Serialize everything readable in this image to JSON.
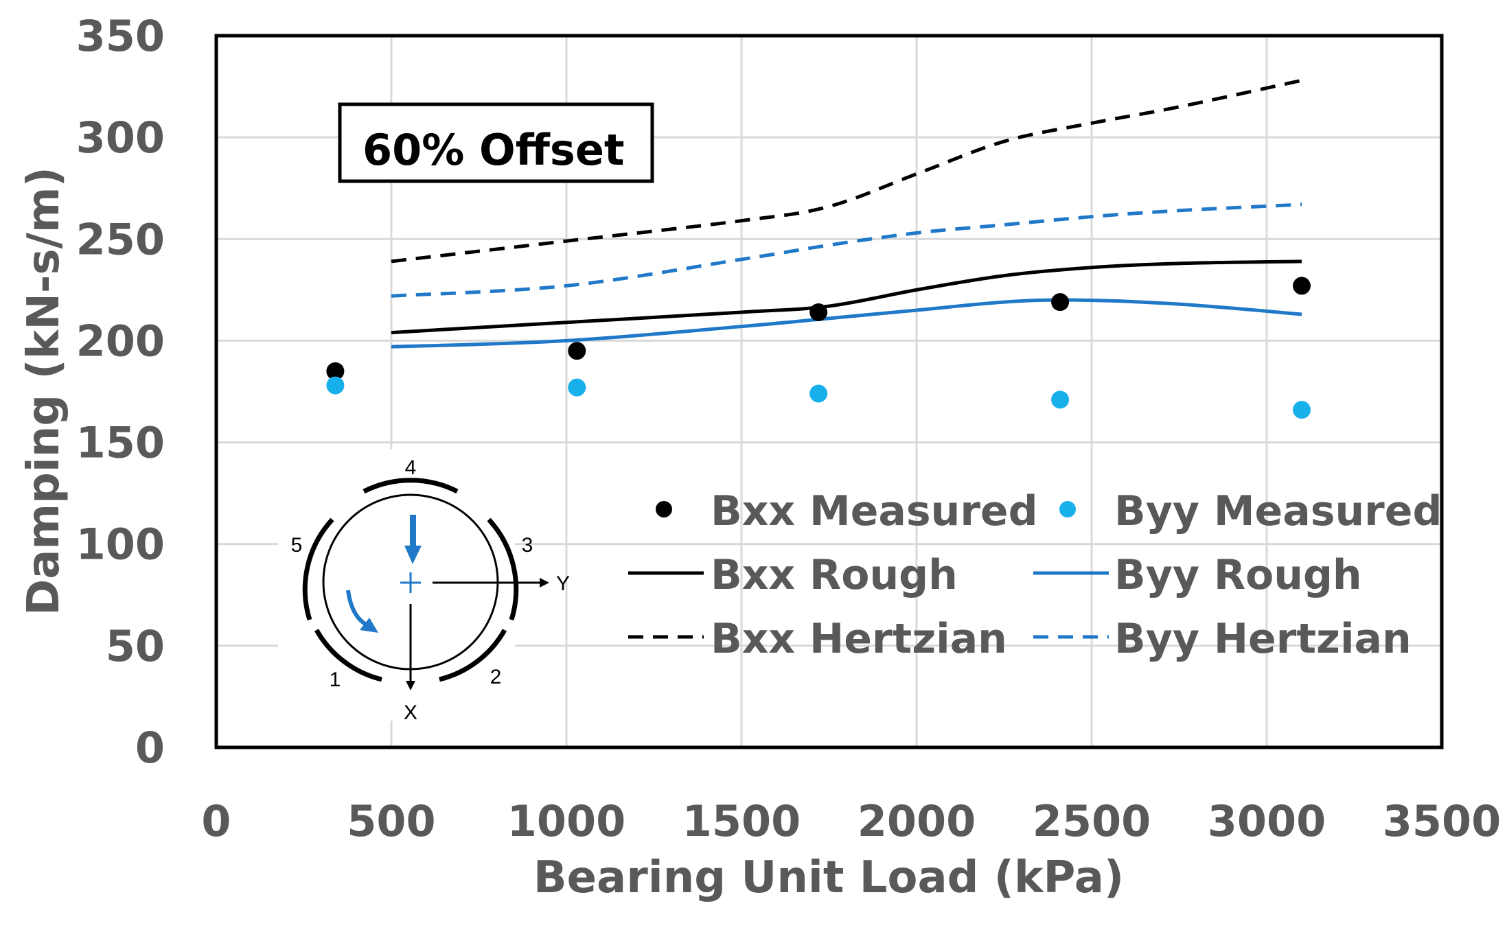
{
  "chart_data": {
    "type": "scatter",
    "title": "",
    "xlabel": "Bearing Unit Load (kPa)",
    "ylabel": "Damping (kN-s/m)",
    "xlim": [
      0,
      3500
    ],
    "ylim": [
      0,
      350
    ],
    "x_ticks": [
      0,
      500,
      1000,
      1500,
      2000,
      2500,
      3000,
      3500
    ],
    "y_ticks": [
      0,
      50,
      100,
      150,
      200,
      250,
      300,
      350
    ],
    "x_tick_labels": [
      "0",
      "500",
      "1000",
      "1500",
      "2000",
      "2500",
      "3000",
      "3500"
    ],
    "y_tick_labels": [
      "0",
      "50",
      "100",
      "150",
      "200",
      "250",
      "300",
      "350"
    ],
    "grid": true,
    "legend_position": "right-center",
    "annotation": "60% Offset",
    "series": [
      {
        "name": "Bxx Measured",
        "kind": "scatter",
        "color": "#000000",
        "x": [
          340,
          1030,
          1720,
          2410,
          3100
        ],
        "y": [
          185,
          195,
          214,
          219,
          227
        ]
      },
      {
        "name": "Byy Measured",
        "kind": "scatter",
        "color": "#17b0ea",
        "x": [
          340,
          1030,
          1720,
          2410,
          3100
        ],
        "y": [
          178,
          177,
          174,
          171,
          166
        ]
      },
      {
        "name": "Bxx Rough",
        "kind": "line",
        "style": "solid",
        "color": "#000000",
        "x": [
          500,
          1000,
          1500,
          1750,
          2000,
          2250,
          2500,
          2750,
          3100
        ],
        "y": [
          204,
          209,
          214,
          217,
          225,
          232,
          236,
          238,
          239
        ]
      },
      {
        "name": "Byy Rough",
        "kind": "line",
        "style": "solid",
        "color": "#1f78c8",
        "x": [
          500,
          1000,
          1500,
          1750,
          2000,
          2250,
          2450,
          2750,
          3100
        ],
        "y": [
          197,
          200,
          207,
          211,
          215,
          219,
          220,
          218,
          213
        ]
      },
      {
        "name": "Bxx Hertzian",
        "kind": "line",
        "style": "dashed",
        "color": "#000000",
        "x": [
          500,
          1000,
          1500,
          1750,
          2000,
          2250,
          2500,
          2750,
          3100
        ],
        "y": [
          239,
          249,
          259,
          266,
          282,
          298,
          307,
          315,
          328
        ]
      },
      {
        "name": "Byy Hertzian",
        "kind": "line",
        "style": "dashed",
        "color": "#1f78c8",
        "x": [
          500,
          1000,
          1500,
          1750,
          2000,
          2250,
          2500,
          2750,
          3100
        ],
        "y": [
          222,
          227,
          240,
          247,
          253,
          257,
          261,
          264,
          267
        ]
      }
    ],
    "inset_diagram": {
      "pad_labels": [
        "1",
        "2",
        "3",
        "4",
        "5"
      ],
      "axis_labels": [
        "Y",
        "X"
      ]
    }
  }
}
